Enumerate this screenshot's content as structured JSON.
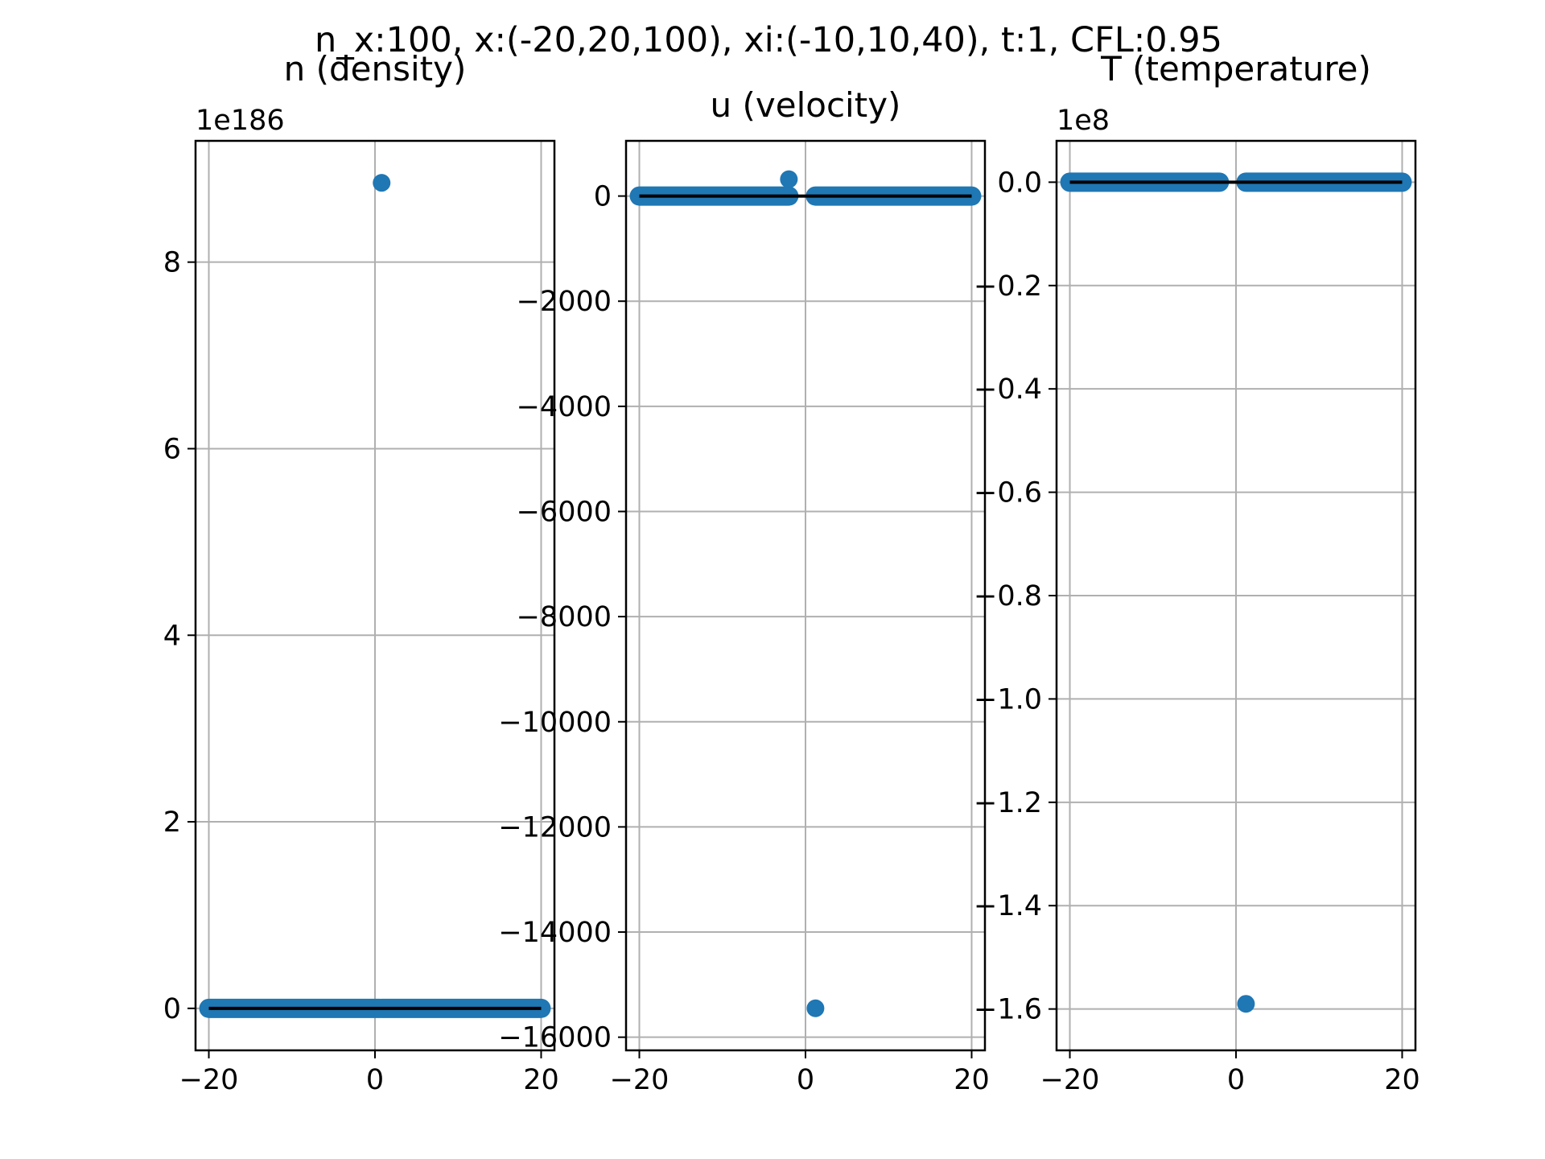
{
  "figure": {
    "suptitle": "n_x:100, x:(-20,20,100), xi:(-10,10,40), t:1, CFL:0.95"
  },
  "colors": {
    "points": "#1f77b4",
    "line": "#000000",
    "grid": "#b0b0b0",
    "axes": "#000000"
  },
  "chart_data": [
    {
      "type": "scatter",
      "title": "n (density)",
      "offset_text": "1e186",
      "xlim": [
        -21.6,
        21.6
      ],
      "ylim": [
        -0.45,
        9.3
      ],
      "xticks": [
        -20,
        0,
        20
      ],
      "xtick_labels": [
        "−20",
        "0",
        "20"
      ],
      "yticks": [
        0,
        2,
        4,
        6,
        8
      ],
      "ytick_labels": [
        "0",
        "2",
        "4",
        "6",
        "8"
      ],
      "grid": true,
      "series": [
        {
          "kind": "points",
          "x": [
            0.8
          ],
          "y": [
            8.85
          ]
        },
        {
          "kind": "points-band",
          "x_range": [
            -20,
            20
          ],
          "y": 0,
          "gap_x": [
            0.6,
            0.8
          ]
        },
        {
          "kind": "line",
          "x": [
            -20,
            20
          ],
          "y": [
            0,
            0
          ]
        }
      ]
    },
    {
      "type": "scatter",
      "title": "u (velocity)",
      "offset_text": "",
      "xlim": [
        -21.6,
        21.6
      ],
      "ylim": [
        -16250,
        1050
      ],
      "xticks": [
        -20,
        0,
        20
      ],
      "xtick_labels": [
        "−20",
        "0",
        "20"
      ],
      "yticks": [
        0,
        -2000,
        -4000,
        -6000,
        -8000,
        -10000,
        -12000,
        -14000,
        -16000
      ],
      "ytick_labels": [
        "0",
        "−2000",
        "−4000",
        "−6000",
        "−8000",
        "−10000",
        "−12000",
        "−14000",
        "−16000"
      ],
      "grid": true,
      "series": [
        {
          "kind": "points",
          "x": [
            -2.0,
            1.2
          ],
          "y": [
            320,
            -15450
          ]
        },
        {
          "kind": "points-band",
          "x_range": [
            -20,
            20
          ],
          "y": 0,
          "gap_x": [
            -2.0,
            1.2
          ]
        },
        {
          "kind": "line",
          "x": [
            -20,
            20
          ],
          "y": [
            0,
            0
          ]
        }
      ]
    },
    {
      "type": "scatter",
      "title": "T (temperature)",
      "offset_text": "1e8",
      "xlim": [
        -21.6,
        21.6
      ],
      "ylim": [
        -1.68,
        0.08
      ],
      "xticks": [
        -20,
        0,
        20
      ],
      "xtick_labels": [
        "−20",
        "0",
        "20"
      ],
      "yticks": [
        0.0,
        -0.2,
        -0.4,
        -0.6,
        -0.8,
        -1.0,
        -1.2,
        -1.4,
        -1.6
      ],
      "ytick_labels": [
        "0.0",
        "−0.2",
        "−0.4",
        "−0.6",
        "−0.8",
        "−1.0",
        "−1.2",
        "−1.4",
        "−1.6"
      ],
      "grid": true,
      "series": [
        {
          "kind": "points",
          "x": [
            1.2
          ],
          "y": [
            -1.59
          ]
        },
        {
          "kind": "points-band",
          "x_range": [
            -20,
            20
          ],
          "y": 0,
          "gap_x": [
            -2.0,
            1.2
          ]
        },
        {
          "kind": "line",
          "x": [
            -20,
            20
          ],
          "y": [
            0,
            0
          ]
        }
      ]
    }
  ]
}
